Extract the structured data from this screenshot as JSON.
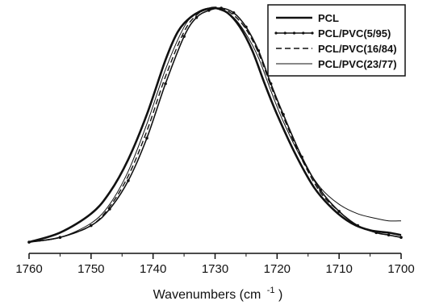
{
  "chart_data": {
    "type": "line",
    "title": "",
    "xlabel": "Wavenumbers (cm",
    "xlabel_sup": "-1",
    "xlabel_close": ")",
    "ylabel": "",
    "xlim": [
      1760,
      1700
    ],
    "ylim": [
      0,
      1.0
    ],
    "x_reversed": true,
    "x_ticks": [
      1760,
      1750,
      1740,
      1730,
      1720,
      1710,
      1700
    ],
    "x_tick_labels": [
      "1760",
      "1750",
      "1740",
      "1730",
      "1720",
      "1710",
      "1700"
    ],
    "y_ticks_shown": false,
    "grid": false,
    "legend_position": "top-right",
    "series": [
      {
        "name": "PCL",
        "style": "solid-thick",
        "color": "#111111",
        "x": [
          1760,
          1755,
          1750,
          1747,
          1744,
          1741,
          1738,
          1736,
          1734,
          1732,
          1730,
          1728,
          1726,
          1724,
          1722,
          1720,
          1717,
          1714,
          1711,
          1708,
          1705,
          1702,
          1700
        ],
        "y": [
          0.01,
          0.05,
          0.13,
          0.22,
          0.36,
          0.55,
          0.78,
          0.9,
          0.96,
          0.99,
          1.0,
          0.98,
          0.92,
          0.82,
          0.68,
          0.55,
          0.38,
          0.24,
          0.15,
          0.09,
          0.06,
          0.05,
          0.04
        ]
      },
      {
        "name": "PCL/PVC(5/95)",
        "style": "solid-dotted-markers",
        "color": "#111111",
        "x": [
          1760,
          1755,
          1750,
          1747,
          1744,
          1741,
          1738,
          1735,
          1733,
          1731,
          1729,
          1727,
          1725,
          1723,
          1721,
          1719,
          1716,
          1713,
          1710,
          1707,
          1704,
          1702,
          1700
        ],
        "y": [
          0.01,
          0.03,
          0.08,
          0.15,
          0.27,
          0.45,
          0.68,
          0.88,
          0.96,
          0.99,
          1.0,
          0.98,
          0.92,
          0.82,
          0.68,
          0.55,
          0.37,
          0.23,
          0.14,
          0.08,
          0.05,
          0.04,
          0.03
        ]
      },
      {
        "name": "PCL/PVC(16/84)",
        "style": "dashed",
        "color": "#111111",
        "x": [
          1760,
          1755,
          1750,
          1747,
          1744,
          1741,
          1738,
          1735,
          1733,
          1731,
          1729,
          1727,
          1725,
          1723,
          1721,
          1719,
          1716,
          1713,
          1710,
          1707,
          1704,
          1702,
          1700
        ],
        "y": [
          0.01,
          0.03,
          0.08,
          0.16,
          0.29,
          0.48,
          0.71,
          0.9,
          0.97,
          1.0,
          1.0,
          0.97,
          0.91,
          0.81,
          0.67,
          0.54,
          0.36,
          0.22,
          0.14,
          0.08,
          0.05,
          0.04,
          0.03
        ]
      },
      {
        "name": "PCL/PVC(23/77)",
        "style": "solid-thin",
        "color": "#111111",
        "x": [
          1760,
          1755,
          1750,
          1747,
          1744,
          1741,
          1738,
          1735,
          1733,
          1731,
          1729,
          1727,
          1725,
          1723,
          1721,
          1719,
          1716,
          1713,
          1710,
          1707,
          1704,
          1702,
          1700
        ],
        "y": [
          0.01,
          0.03,
          0.09,
          0.17,
          0.31,
          0.51,
          0.74,
          0.92,
          0.98,
          1.0,
          0.99,
          0.96,
          0.89,
          0.79,
          0.65,
          0.52,
          0.36,
          0.24,
          0.17,
          0.13,
          0.11,
          0.1,
          0.1
        ]
      }
    ]
  }
}
